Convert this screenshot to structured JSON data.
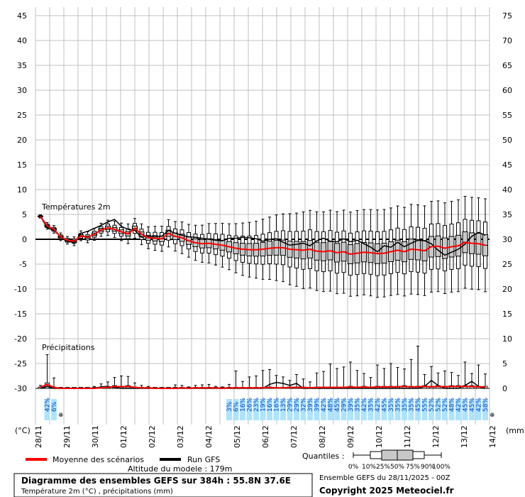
{
  "chart_data": {
    "type": "boxplot",
    "title": "Diagramme des ensembles GEFS sur 384h : 55.8N 37.6E",
    "subtitle": "Température 2m (°C) , précipitations (mm)",
    "left_axis_unit": "(°C)",
    "right_axis_unit": "(mm)",
    "left_ticks": [
      45,
      40,
      35,
      30,
      25,
      20,
      15,
      10,
      5,
      0,
      -5,
      -10,
      -15,
      -20,
      -25,
      -30
    ],
    "right_ticks": [
      75,
      70,
      65,
      60,
      55,
      50,
      45,
      40,
      35,
      30,
      25,
      20,
      15,
      10,
      5,
      0
    ],
    "ylim_temp": [
      -30,
      45
    ],
    "ylim_precip": [
      0,
      75
    ],
    "x_labels": [
      "28/11",
      "29/11",
      "30/11",
      "01/12",
      "02/12",
      "03/12",
      "04/12",
      "05/12",
      "06/12",
      "07/12",
      "08/12",
      "09/12",
      "10/12",
      "11/12",
      "12/12",
      "13/12",
      "14/12"
    ],
    "temp_label": "Températures 2m",
    "precip_label": "Précipitations",
    "snow_prob_group1": [
      "42%",
      "6%"
    ],
    "snow_prob_group2": [
      "3%",
      "6%",
      "16%",
      "26%",
      "23%",
      "19%",
      "16%",
      "16%",
      "13%",
      "29%",
      "29%",
      "32%",
      "39%",
      "39%",
      "42%",
      "48%",
      "45%",
      "29%",
      "39%",
      "35%",
      "42%",
      "35%",
      "42%",
      "45%",
      "35%",
      "35%",
      "35%",
      "35%",
      "45%",
      "55%",
      "52%",
      "52%",
      "52%",
      "48%",
      "42%",
      "45%",
      "45%",
      "42%",
      "58%"
    ],
    "legend": {
      "mean": "Moyenne des scénarios",
      "run": "Run GFS",
      "quantiles_label": "Quantiles :",
      "quantiles": [
        "0%",
        "10%",
        "25%",
        "50%",
        "75%",
        "90%",
        "100%"
      ]
    },
    "altitude": "Altitude du modele : 179m",
    "ensemble_info": "Ensemble GEFS du 28/11/2025 - 00Z",
    "copyright": "Copyright 2025 Meteociel.fr",
    "temp_mean": [
      4.6,
      2.7,
      2.0,
      0.5,
      -0.2,
      -0.4,
      0.7,
      0.4,
      1.0,
      1.9,
      2.3,
      2.0,
      1.5,
      1.1,
      2.2,
      1.0,
      0.3,
      0.2,
      0.1,
      1.2,
      0.6,
      0.3,
      -0.3,
      -0.7,
      -0.9,
      -0.8,
      -1.0,
      -1.2,
      -1.5,
      -1.8,
      -2.0,
      -2.1,
      -2.1,
      -2.0,
      -1.8,
      -1.7,
      -1.7,
      -2.0,
      -2.1,
      -2.2,
      -2.0,
      -2.4,
      -2.5,
      -2.3,
      -2.7,
      -2.5,
      -3.0,
      -2.8,
      -2.6,
      -2.7,
      -2.9,
      -2.8,
      -2.5,
      -2.2,
      -2.5,
      -2.0,
      -2.1,
      -2.3,
      -1.5,
      -1.4,
      -1.8,
      -1.5,
      -1.3,
      -0.6,
      -0.8,
      -0.9,
      -1.2
    ],
    "temp_run": [
      4.6,
      2.3,
      1.8,
      0.5,
      -0.4,
      -0.7,
      1.2,
      1.6,
      2.2,
      2.8,
      3.5,
      4.0,
      2.6,
      2.0,
      1.8,
      0.4,
      0.6,
      0.5,
      0.6,
      1.8,
      1.2,
      0.8,
      0.5,
      0.4,
      0.2,
      0.0,
      -0.2,
      -0.3,
      0.2,
      0.2,
      0.4,
      0.3,
      0.1,
      -0.4,
      0.0,
      0.1,
      -0.6,
      -1.2,
      -1.0,
      -0.8,
      -1.3,
      -0.3,
      0.2,
      -0.4,
      -0.5,
      0.1,
      -0.5,
      -0.2,
      -0.9,
      -1.6,
      -2.5,
      -1.3,
      -1.6,
      -0.6,
      -1.5,
      -0.8,
      -0.2,
      -0.3,
      -0.9,
      -2.2,
      -3.2,
      -2.6,
      -2.0,
      -1.0,
      0.6,
      1.4,
      0.8
    ],
    "temp_spread": [
      0.3,
      0.6,
      0.7,
      0.7,
      0.7,
      0.8,
      0.9,
      1.0,
      1.1,
      1.2,
      1.4,
      1.5,
      1.6,
      1.8,
      1.8,
      1.9,
      2.0,
      2.2,
      2.3,
      2.5,
      2.7,
      2.9,
      3.0,
      3.2,
      3.4,
      3.6,
      3.8,
      4.0,
      4.2,
      4.5,
      4.8,
      5.0,
      5.2,
      5.5,
      5.7,
      6.0,
      6.2,
      6.5,
      6.7,
      7.0,
      7.1,
      7.2,
      7.3,
      7.4,
      7.5,
      7.6,
      7.7,
      7.8,
      7.8,
      7.9,
      8.0,
      8.0,
      8.0,
      8.1,
      8.1,
      8.2,
      8.2,
      8.2,
      8.3,
      8.3,
      8.3,
      8.3,
      8.4,
      8.4,
      8.4,
      8.4,
      8.5
    ],
    "precip_mean": [
      0.2,
      0.8,
      0.2,
      0.0,
      0.0,
      0.0,
      0.0,
      0.0,
      0.0,
      0.1,
      0.2,
      0.4,
      0.3,
      0.4,
      0.2,
      0.1,
      0.1,
      0.0,
      0.0,
      0.0,
      0.0,
      0.1,
      0.0,
      0.1,
      0.1,
      0.1,
      0.1,
      0.0,
      0.1,
      0.1,
      0.1,
      0.1,
      0.1,
      0.1,
      0.2,
      0.1,
      0.1,
      0.2,
      0.2,
      0.2,
      0.1,
      0.2,
      0.2,
      0.2,
      0.2,
      0.2,
      0.3,
      0.2,
      0.3,
      0.2,
      0.3,
      0.3,
      0.3,
      0.3,
      0.4,
      0.3,
      0.3,
      0.4,
      0.3,
      0.4,
      0.3,
      0.4,
      0.4,
      0.4,
      0.4,
      0.3,
      0.3
    ],
    "precip_run": [
      0.0,
      0.4,
      0.0,
      0.0,
      0.0,
      0.0,
      0.0,
      0.0,
      0.0,
      0.3,
      0.4,
      0.2,
      0.0,
      0.0,
      0.0,
      0.0,
      0.0,
      0.0,
      0.0,
      0.0,
      0.0,
      0.0,
      0.0,
      0.0,
      0.0,
      0.0,
      0.0,
      0.0,
      0.0,
      0.0,
      0.0,
      0.0,
      0.0,
      0.0,
      0.8,
      1.2,
      1.0,
      0.6,
      1.0,
      0.0,
      0.0,
      0.0,
      0.0,
      0.0,
      0.0,
      0.0,
      0.0,
      0.0,
      0.0,
      0.0,
      0.0,
      0.0,
      0.0,
      0.0,
      0.0,
      0.0,
      0.0,
      0.4,
      1.6,
      0.6,
      0.0,
      0.0,
      0.0,
      0.6,
      1.4,
      0.4,
      0.0
    ],
    "precip_max": [
      0.6,
      6.8,
      2.1,
      0.2,
      0.1,
      0.0,
      0.1,
      0.2,
      0.4,
      0.9,
      1.3,
      2.2,
      2.5,
      2.4,
      1.1,
      0.6,
      0.4,
      0.0,
      0.0,
      0.2,
      0.7,
      0.6,
      0.3,
      0.6,
      0.7,
      0.8,
      0.4,
      0.3,
      0.8,
      3.5,
      1.4,
      2.3,
      2.5,
      3.6,
      3.8,
      2.6,
      2.3,
      1.6,
      2.8,
      1.9,
      1.3,
      3.1,
      3.4,
      4.9,
      4.0,
      4.3,
      5.3,
      3.6,
      3.0,
      2.2,
      4.7,
      4.0,
      5.0,
      4.2,
      3.9,
      5.8,
      8.5,
      2.8,
      4.4,
      3.1,
      3.5,
      3.2,
      2.6,
      5.3,
      3.0,
      4.7,
      2.9
    ]
  }
}
